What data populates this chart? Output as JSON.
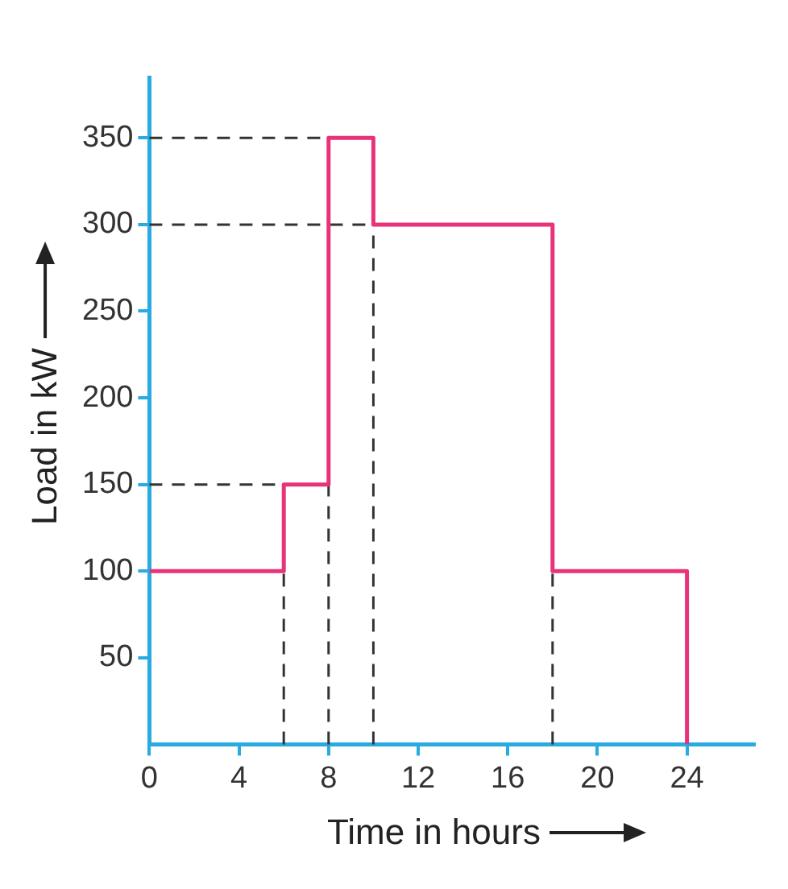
{
  "chart_data": {
    "type": "step",
    "xlabel": "Time in hours",
    "ylabel": "Load in kW",
    "x": [
      0,
      6,
      8,
      10,
      18,
      24
    ],
    "series": [
      {
        "color": "#e8337a",
        "values": [
          100,
          150,
          350,
          300,
          100,
          0
        ]
      }
    ],
    "xlim": [
      0,
      27
    ],
    "xticks": [
      0,
      4,
      8,
      12,
      16,
      20,
      24
    ],
    "ylim": [
      0,
      385
    ],
    "yticks": [
      50,
      100,
      150,
      200,
      250,
      300,
      350
    ],
    "ref_lines": [
      {
        "axis": "y",
        "value": 350,
        "color": "#333333",
        "line_style": "dashed"
      },
      {
        "axis": "y",
        "value": 300,
        "color": "#333333",
        "line_style": "dashed"
      },
      {
        "axis": "y",
        "value": 150,
        "color": "#333333",
        "line_style": "dashed"
      },
      {
        "axis": "x",
        "value": 6,
        "color": "#333333",
        "line_style": "dashed"
      },
      {
        "axis": "x",
        "value": 8,
        "color": "#333333",
        "line_style": "dashed"
      },
      {
        "axis": "x",
        "value": 10,
        "color": "#333333",
        "line_style": "dashed"
      },
      {
        "axis": "x",
        "value": 18,
        "color": "#333333",
        "line_style": "dashed"
      }
    ],
    "grid": false,
    "legend": false,
    "marker": "none",
    "line_style": "solid"
  }
}
